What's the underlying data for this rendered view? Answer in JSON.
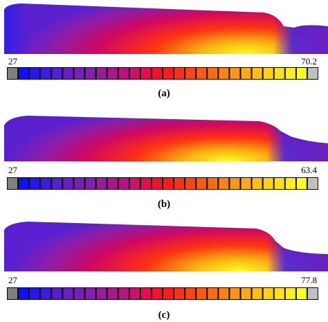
{
  "panels": [
    {
      "min_label": "27",
      "max_label": "70.2",
      "caption": "(a)"
    },
    {
      "min_label": "27",
      "max_label": "63.4",
      "caption": "(b)"
    },
    {
      "min_label": "27",
      "max_label": "77.8",
      "caption": "(c)"
    }
  ],
  "colorbar": {
    "segments": 26,
    "low_swatch_color": "#808080",
    "high_swatch_color": "#c0c0c0",
    "gradient_colors": [
      "#1010ff",
      "#5a20d0",
      "#8a1fa8",
      "#c0107a",
      "#ff1020",
      "#ff5010",
      "#ff9010",
      "#ffd010",
      "#ffff20"
    ]
  }
}
